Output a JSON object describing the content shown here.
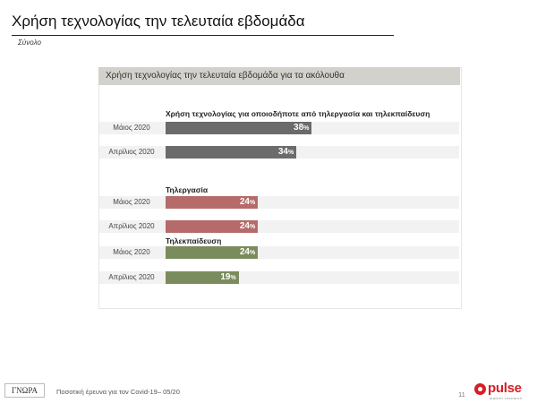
{
  "header": {
    "title": "Χρήση τεχνολογίας την τελευταία εβδομάδα",
    "subtitle": "Σύνολο"
  },
  "chart_data": {
    "type": "bar",
    "title": "Χρήση τεχνολογίας  την τελευταία εβδομάδα για τα ακόλουθα",
    "unit": "%",
    "groups": [
      {
        "name": "Χρήση τεχνολογίας για οποιοδήποτε από τηλεργασία και τηλεκπαίδευση",
        "color": "#6b6b6b",
        "bars": [
          {
            "category": "Μάιος 2020",
            "value": 38
          },
          {
            "category": "Απρίλιος 2020",
            "value": 34
          }
        ]
      },
      {
        "name": "Τηλεργασία",
        "color": "#b46b6a",
        "bars": [
          {
            "category": "Μάιος 2020",
            "value": 24
          },
          {
            "category": "Απρίλιος 2020",
            "value": 24
          }
        ]
      },
      {
        "name": "Τηλεκπαίδευση",
        "color": "#7a8c5d",
        "bars": [
          {
            "category": "Μάιος 2020",
            "value": 24
          },
          {
            "category": "Απρίλιος 2020",
            "value": 19
          }
        ]
      }
    ]
  },
  "footer": {
    "logo_text": "ΓΝΩΡΑ",
    "survey_text": "Ποσοτική έρευνα για τον Covid-19– 05/20",
    "page_number": "11",
    "brand": "pulse",
    "brand_tagline": "market research"
  }
}
